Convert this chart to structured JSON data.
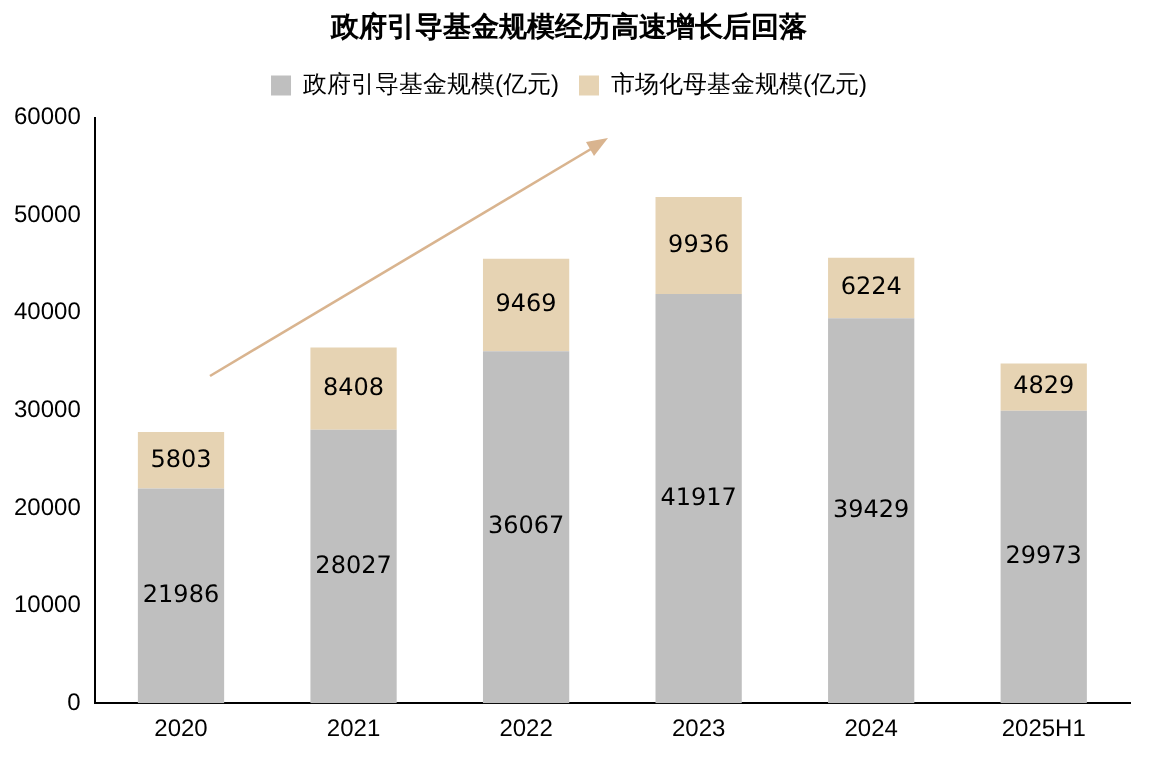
{
  "chart_data": {
    "type": "bar",
    "title": "政府引导基金规模经历高速增长后回落",
    "categories": [
      "2020",
      "2021",
      "2022",
      "2023",
      "2024",
      "2025H1"
    ],
    "series": [
      {
        "name": "政府引导基金规模(亿元)",
        "color": "#bfbfbf",
        "values": [
          21986,
          28027,
          36067,
          41917,
          39429,
          29973
        ]
      },
      {
        "name": "市场化母基金规模(亿元)",
        "color": "#e6d3b3",
        "values": [
          5803,
          8408,
          9469,
          9936,
          6224,
          4829
        ]
      }
    ],
    "stacked": true,
    "ylim": [
      0,
      60000
    ],
    "yticks": [
      0,
      10000,
      20000,
      30000,
      40000,
      50000,
      60000
    ],
    "grid": false,
    "legend": "top",
    "data_labels": true
  }
}
